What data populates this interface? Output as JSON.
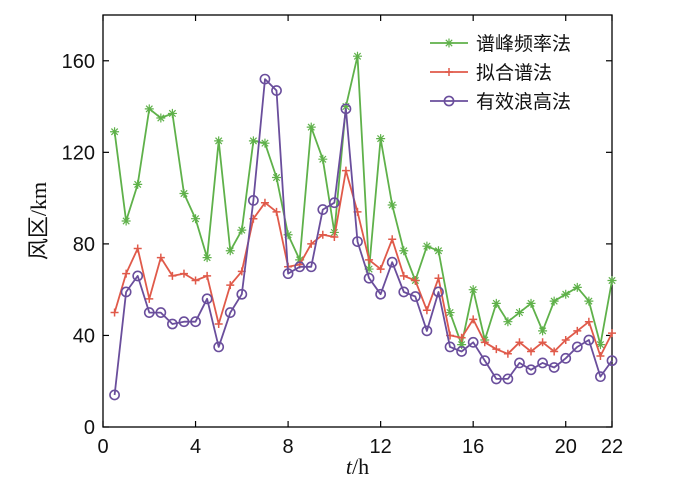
{
  "chart_data": {
    "type": "line",
    "title": "",
    "xlabel": {
      "var": "t",
      "sep": "/",
      "unit": "h"
    },
    "ylabel": "风区/km",
    "xlim": [
      0,
      22
    ],
    "ylim": [
      0,
      180
    ],
    "xticks": [
      0,
      4,
      8,
      12,
      16,
      20,
      22
    ],
    "yticks": [
      0,
      40,
      80,
      120,
      160
    ],
    "grid": false,
    "legend_position": "top-right",
    "x": [
      0.5,
      1,
      1.5,
      2,
      2.5,
      3,
      3.5,
      4,
      4.5,
      5,
      5.5,
      6,
      6.5,
      7,
      7.5,
      8,
      8.5,
      9,
      9.5,
      10,
      10.5,
      11,
      11.5,
      12,
      12.5,
      13,
      13.5,
      14,
      14.5,
      15,
      15.5,
      16,
      16.5,
      17,
      17.5,
      18,
      18.5,
      19,
      19.5,
      20,
      20.5,
      21,
      21.5,
      22
    ],
    "series": [
      {
        "name": "谱峰频率法",
        "color": "#5fb14a",
        "marker": "star",
        "values": [
          129,
          90,
          106,
          139,
          135,
          137,
          102,
          91,
          74,
          125,
          77,
          86,
          125,
          124,
          109,
          84,
          73,
          131,
          117,
          85,
          140,
          162,
          69,
          126,
          97,
          77,
          64,
          79,
          77,
          50,
          36,
          60,
          38,
          54,
          46,
          50,
          54,
          42,
          55,
          58,
          61,
          55,
          36,
          64
        ]
      },
      {
        "name": "拟合谱法",
        "color": "#e05a4a",
        "marker": "plus",
        "values": [
          50,
          67,
          78,
          56,
          74,
          66,
          67,
          64,
          66,
          45,
          62,
          68,
          91,
          98,
          94,
          70,
          71,
          80,
          84,
          83,
          112,
          94,
          73,
          69,
          82,
          66,
          64,
          51,
          65,
          40,
          39,
          47,
          37,
          34,
          32,
          37,
          33,
          37,
          33,
          38,
          42,
          46,
          31,
          41
        ]
      },
      {
        "name": "有效浪高法",
        "color": "#6a4e9c",
        "marker": "circle",
        "values": [
          14,
          59,
          66,
          50,
          50,
          45,
          46,
          46,
          56,
          35,
          50,
          58,
          99,
          152,
          147,
          67,
          70,
          70,
          95,
          98,
          139,
          81,
          65,
          58,
          72,
          59,
          57,
          42,
          59,
          35,
          33,
          37,
          29,
          21,
          21,
          28,
          25,
          28,
          26,
          30,
          35,
          38,
          22,
          29
        ]
      }
    ]
  }
}
